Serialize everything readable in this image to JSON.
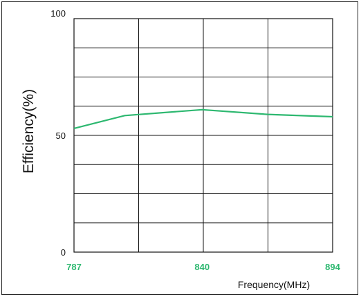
{
  "chart_data": {
    "type": "line",
    "title": "",
    "xlabel": "Frequency(MHz)",
    "ylabel": "Efficiency(%)",
    "xlim": [
      787,
      894
    ],
    "ylim": [
      0,
      100
    ],
    "x_ticks": [
      "787",
      "840",
      "894"
    ],
    "y_ticks": [
      "0",
      "50",
      "100"
    ],
    "grid": true,
    "series_color": "#2db870",
    "tick_color_x": "#2db870",
    "series": [
      {
        "x": [
          787,
          808,
          840,
          867,
          894
        ],
        "values": [
          53,
          58.5,
          61,
          59,
          58
        ]
      }
    ]
  }
}
